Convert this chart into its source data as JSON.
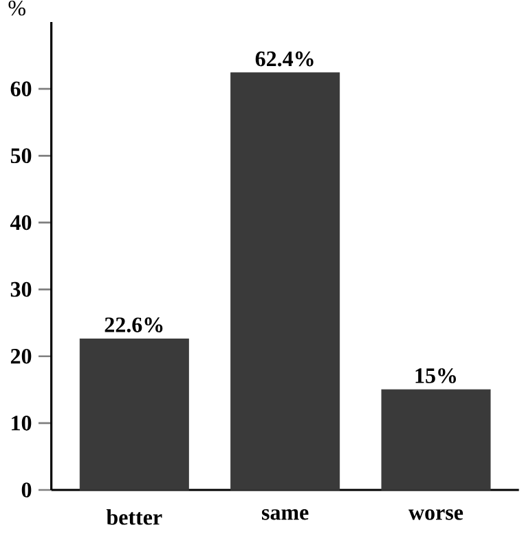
{
  "chart_data": {
    "type": "bar",
    "ylabel": "%",
    "categories": [
      "better",
      "same",
      "worse"
    ],
    "values": [
      22.6,
      62.4,
      15
    ],
    "value_labels": [
      "22.6%",
      "62.4%",
      "15%"
    ],
    "color": "#3a3a3a",
    "ylim": [
      0,
      70
    ],
    "yticks": [
      0,
      10,
      20,
      30,
      40,
      50,
      60
    ]
  }
}
